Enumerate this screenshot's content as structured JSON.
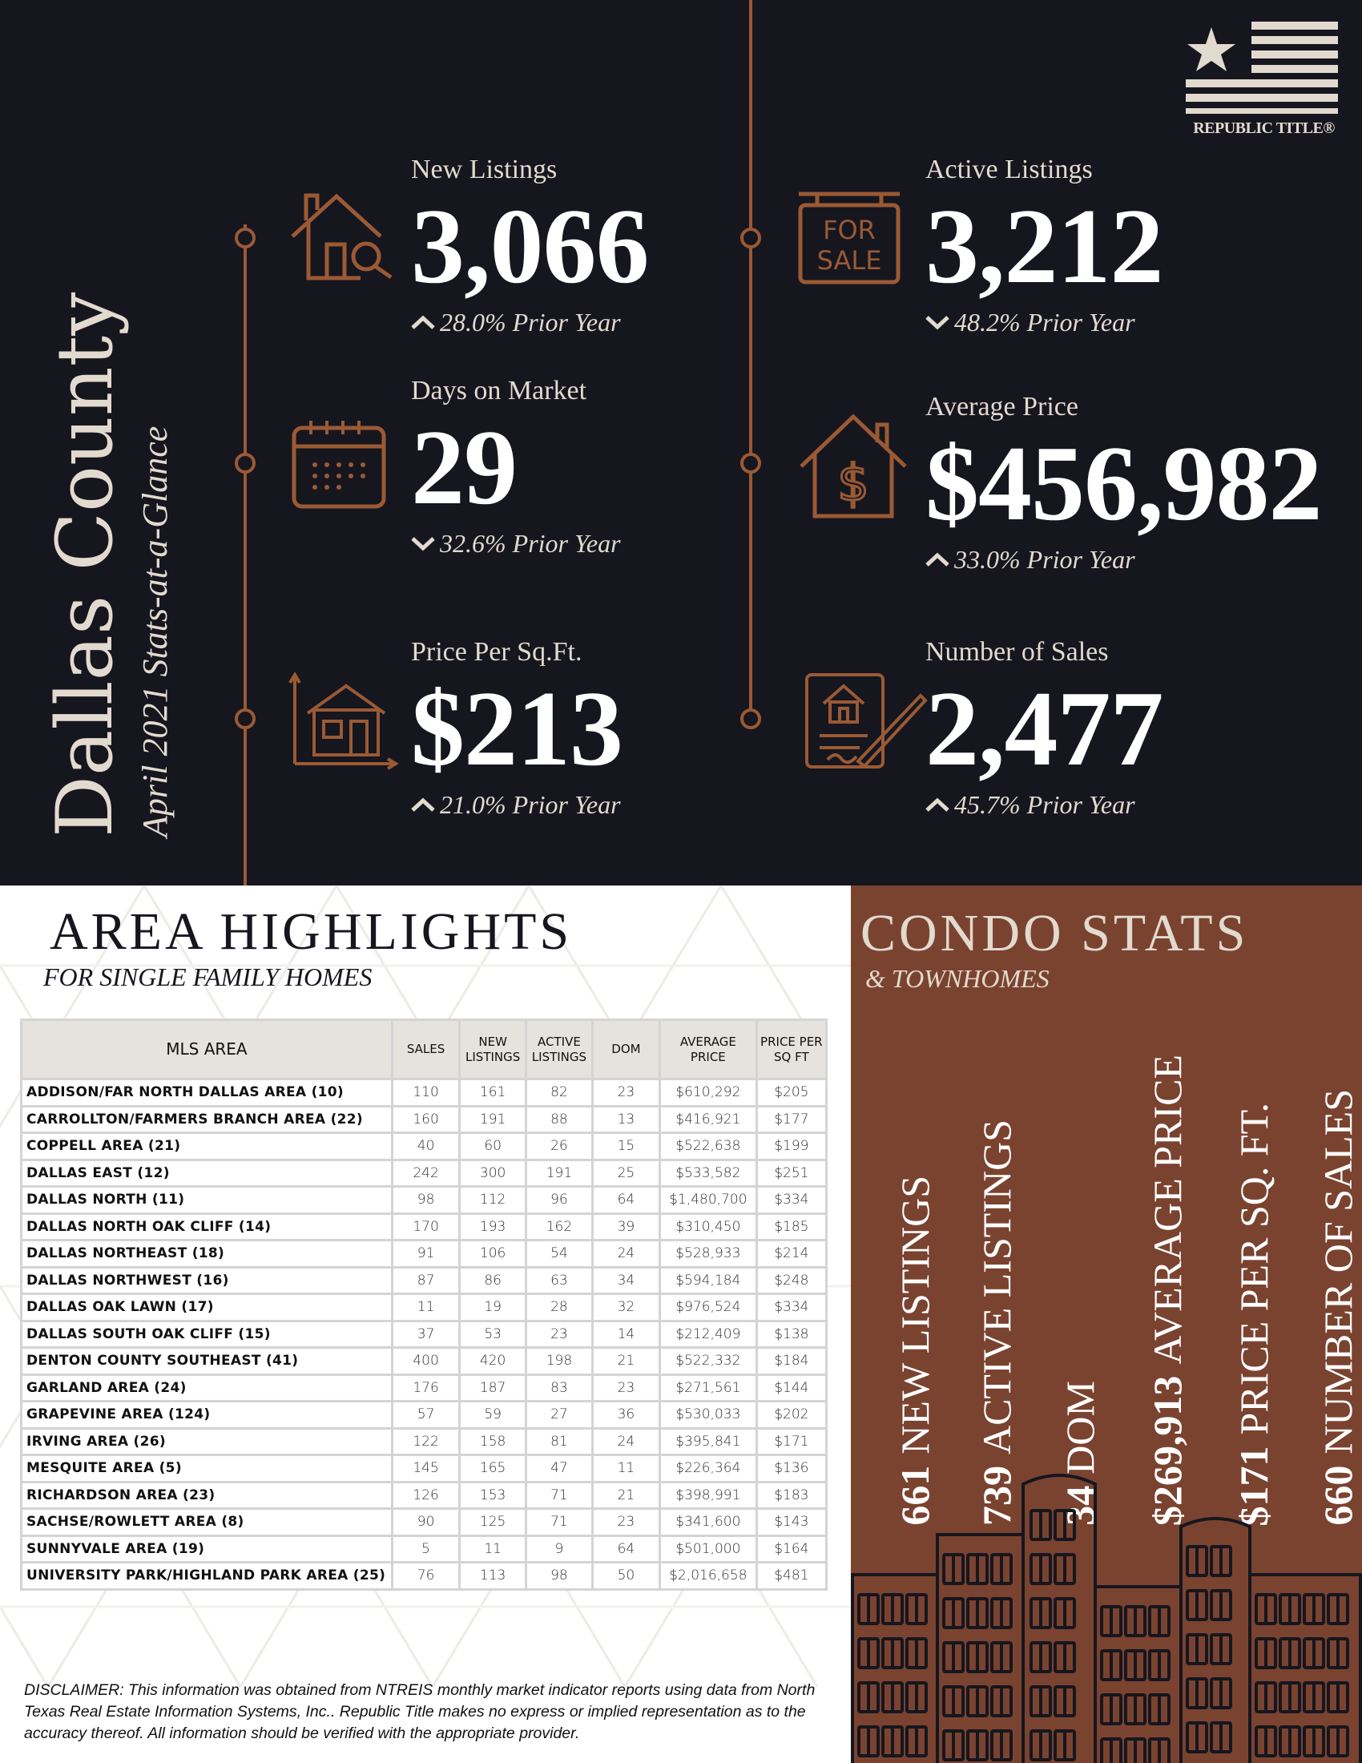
{
  "header": {
    "county": "Dallas County",
    "subtitle": "April 2021 Stats-at-a-Glance",
    "logo_text": "REPUBLIC TITLE®"
  },
  "colors": {
    "background": "#16161f",
    "accent": "#9a5a34",
    "cream": "#e2dace",
    "condo_panel": "#7a4330"
  },
  "stats": [
    {
      "label": "New Listings",
      "value": "3,066",
      "change": "28.0% Prior Year",
      "direction": "up",
      "icon": "house-search-icon"
    },
    {
      "label": "Active Listings",
      "value": "3,212",
      "change": "48.2% Prior Year",
      "direction": "down",
      "icon": "for-sale-sign-icon",
      "sign_text": "FOR SALE"
    },
    {
      "label": "Days on Market",
      "value": "29",
      "change": "32.6% Prior Year",
      "direction": "down",
      "icon": "calendar-icon"
    },
    {
      "label": "Average Price",
      "value": "$456,982",
      "change": "33.0% Prior Year",
      "direction": "up",
      "icon": "house-dollar-icon"
    },
    {
      "label": "Price Per Sq.Ft.",
      "value": "$213",
      "change": "21.0% Prior Year",
      "direction": "up",
      "icon": "house-measure-icon"
    },
    {
      "label": "Number of Sales",
      "value": "2,477",
      "change": "45.7% Prior Year",
      "direction": "up",
      "icon": "contract-sign-icon"
    }
  ],
  "area": {
    "title": "AREA HIGHLIGHTS",
    "subtitle": "FOR SINGLE FAMILY HOMES",
    "headers": [
      "MLS AREA",
      "SALES",
      "NEW LISTINGS",
      "ACTIVE LISTINGS",
      "DOM",
      "AVERAGE PRICE",
      "PRICE PER SQ FT"
    ],
    "rows": [
      [
        "ADDISON/FAR NORTH DALLAS AREA (10)",
        "110",
        "161",
        "82",
        "23",
        "$610,292",
        "$205"
      ],
      [
        "CARROLLTON/FARMERS BRANCH AREA (22)",
        "160",
        "191",
        "88",
        "13",
        "$416,921",
        "$177"
      ],
      [
        "COPPELL AREA (21)",
        "40",
        "60",
        "26",
        "15",
        "$522,638",
        "$199"
      ],
      [
        "DALLAS EAST (12)",
        "242",
        "300",
        "191",
        "25",
        "$533,582",
        "$251"
      ],
      [
        "DALLAS NORTH (11)",
        "98",
        "112",
        "96",
        "64",
        "$1,480,700",
        "$334"
      ],
      [
        "DALLAS NORTH OAK CLIFF (14)",
        "170",
        "193",
        "162",
        "39",
        "$310,450",
        "$185"
      ],
      [
        "DALLAS NORTHEAST (18)",
        "91",
        "106",
        "54",
        "24",
        "$528,933",
        "$214"
      ],
      [
        "DALLAS NORTHWEST (16)",
        "87",
        "86",
        "63",
        "34",
        "$594,184",
        "$248"
      ],
      [
        "DALLAS OAK LAWN (17)",
        "11",
        "19",
        "28",
        "32",
        "$976,524",
        "$334"
      ],
      [
        "DALLAS SOUTH OAK CLIFF (15)",
        "37",
        "53",
        "23",
        "14",
        "$212,409",
        "$138"
      ],
      [
        "DENTON COUNTY SOUTHEAST (41)",
        "400",
        "420",
        "198",
        "21",
        "$522,332",
        "$184"
      ],
      [
        "GARLAND AREA (24)",
        "176",
        "187",
        "83",
        "23",
        "$271,561",
        "$144"
      ],
      [
        "GRAPEVINE AREA (124)",
        "57",
        "59",
        "27",
        "36",
        "$530,033",
        "$202"
      ],
      [
        "IRVING AREA (26)",
        "122",
        "158",
        "81",
        "24",
        "$395,841",
        "$171"
      ],
      [
        "MESQUITE AREA (5)",
        "145",
        "165",
        "47",
        "11",
        "$226,364",
        "$136"
      ],
      [
        "RICHARDSON AREA (23)",
        "126",
        "153",
        "71",
        "21",
        "$398,991",
        "$183"
      ],
      [
        "SACHSE/ROWLETT AREA (8)",
        "90",
        "125",
        "71",
        "23",
        "$341,600",
        "$143"
      ],
      [
        "SUNNYVALE AREA (19)",
        "5",
        "11",
        "9",
        "64",
        "$501,000",
        "$164"
      ],
      [
        "UNIVERSITY PARK/HIGHLAND PARK AREA (25)",
        "76",
        "113",
        "98",
        "50",
        "$2,016,658",
        "$481"
      ]
    ]
  },
  "disclaimer": "DISCLAIMER: This information was obtained from NTREIS monthly market indicator reports using data from North Texas Real Estate Information Systems, Inc.. Republic Title makes no express or implied representation as to the accuracy thereof. All information should be verified with the appropriate provider.",
  "condo": {
    "title": "CONDO STATS",
    "subtitle": "& TOWNHOMES",
    "stats": [
      {
        "value": "661",
        "label": "NEW LISTINGS"
      },
      {
        "value": "739",
        "label": "ACTIVE LISTINGS"
      },
      {
        "value": "34",
        "label": "DOM"
      },
      {
        "value": "$269,913",
        "label": "AVERAGE PRICE"
      },
      {
        "value": "$171",
        "label": "PRICE PER SQ. FT."
      },
      {
        "value": "660",
        "label": "NUMBER OF SALES"
      }
    ]
  }
}
